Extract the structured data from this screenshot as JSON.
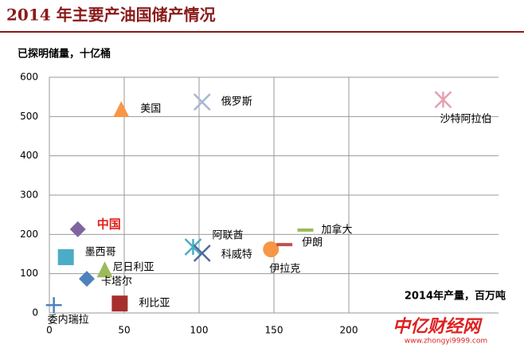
{
  "chart_data": {
    "type": "scatter",
    "title": "2014 年主要产油国储产情况",
    "y_label": "已探明储量，十亿桶",
    "x_label": "2014年产量，百万吨",
    "xlim": [
      0,
      300
    ],
    "xticks": [
      0,
      50,
      100,
      150,
      200
    ],
    "ylim": [
      0,
      600
    ],
    "yticks": [
      0,
      100,
      200,
      300,
      400,
      500,
      600
    ],
    "grid": true,
    "series": [
      {
        "name": "美国",
        "color": "#f79646",
        "marker": "triangle",
        "x": [
          48
        ],
        "values": [
          519
        ]
      },
      {
        "name": "俄罗斯",
        "color": "#a5b6d3",
        "marker": "x",
        "x": [
          102
        ],
        "values": [
          537
        ]
      },
      {
        "name": "沙特阿拉伯",
        "color": "#e6a0b0",
        "marker": "star",
        "x": [
          263
        ],
        "values": [
          543
        ]
      },
      {
        "name": "中国",
        "color": "#8064a2",
        "marker": "diamond",
        "x": [
          19
        ],
        "values": [
          213
        ]
      },
      {
        "name": "墨西哥",
        "color": "#4bacc6",
        "marker": "square",
        "x": [
          11
        ],
        "values": [
          142
        ]
      },
      {
        "name": "尼日利亚",
        "color": "#9bbb59",
        "marker": "triangle",
        "x": [
          37
        ],
        "values": [
          111
        ]
      },
      {
        "name": "卡塔尔",
        "color": "#4f81bd",
        "marker": "diamond",
        "x": [
          25
        ],
        "values": [
          87
        ]
      },
      {
        "name": "委内瑞拉",
        "color": "#4f81bd",
        "marker": "plus",
        "x": [
          3
        ],
        "values": [
          20
        ]
      },
      {
        "name": "利比亚",
        "color": "#a5302e",
        "marker": "square",
        "x": [
          47
        ],
        "values": [
          24
        ]
      },
      {
        "name": "阿联酋",
        "color": "#4bacc6",
        "marker": "star",
        "x": [
          96
        ],
        "values": [
          168
        ]
      },
      {
        "name": "科威特",
        "color": "#4f6a9b",
        "marker": "x",
        "x": [
          102
        ],
        "values": [
          152
        ]
      },
      {
        "name": "伊拉克",
        "color": "#f79646",
        "marker": "circle",
        "x": [
          148
        ],
        "values": [
          162
        ]
      },
      {
        "name": "伊朗",
        "color": "#c0504d",
        "marker": "dash",
        "x": [
          157
        ],
        "values": [
          174
        ]
      },
      {
        "name": "加拿大",
        "color": "#9bbb59",
        "marker": "dash",
        "x": [
          171
        ],
        "values": [
          211
        ]
      }
    ],
    "watermark": "中亿财经网",
    "watermark_url": "www.zhongyi9999.com"
  }
}
